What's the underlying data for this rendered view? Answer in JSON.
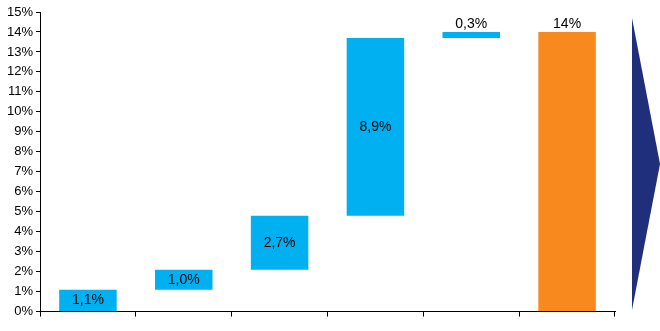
{
  "chart_data": {
    "type": "waterfall",
    "categories": [
      null,
      null,
      null,
      null,
      null,
      null
    ],
    "values": [
      1.1,
      1.0,
      2.7,
      8.9,
      0.3,
      14
    ],
    "value_labels": [
      "1,1%",
      "1,0%",
      "2,7%",
      "8,9%",
      "0,3%",
      "14%"
    ],
    "colors": [
      "#00b0f0",
      "#00b0f0",
      "#00b0f0",
      "#00b0f0",
      "#00b0f0",
      "#f7891f"
    ],
    "ylim": [
      0,
      15
    ],
    "yticks": [
      {
        "value": 0,
        "label": "0%"
      },
      {
        "value": 1,
        "label": "1%"
      },
      {
        "value": 2,
        "label": "2%"
      },
      {
        "value": 3,
        "label": "3%"
      },
      {
        "value": 4,
        "label": "4%"
      },
      {
        "value": 5,
        "label": "5%"
      },
      {
        "value": 6,
        "label": "6%"
      },
      {
        "value": 7,
        "label": "7%"
      },
      {
        "value": 8,
        "label": "8%"
      },
      {
        "value": 9,
        "label": "9%"
      },
      {
        "value": 10,
        "label": "10%"
      },
      {
        "value": 11,
        "label": "11%"
      },
      {
        "value": 12,
        "label": "12%"
      },
      {
        "value": 13,
        "label": "13%"
      },
      {
        "value": 14,
        "label": "14%"
      },
      {
        "value": 15,
        "label": "15%"
      }
    ],
    "grid": false,
    "data_labels": true
  }
}
